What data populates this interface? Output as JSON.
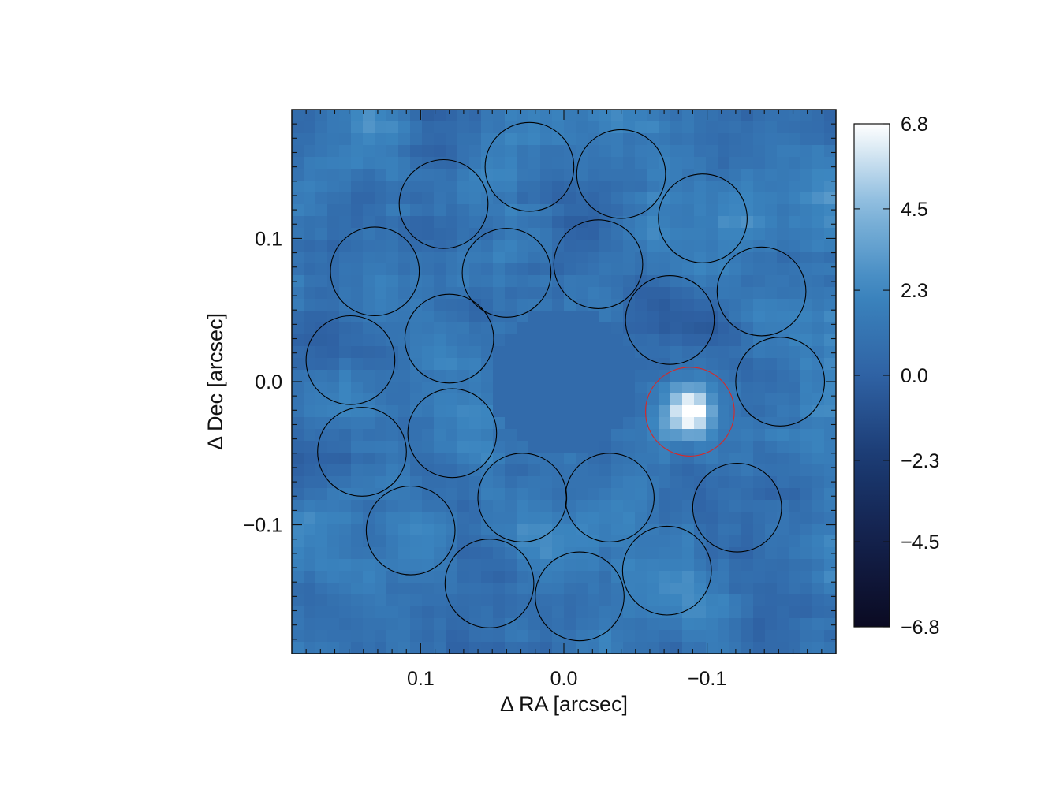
{
  "chart_data": {
    "type": "heatmap",
    "title": "",
    "xlabel": "Δ RA [arcsec]",
    "ylabel": "Δ Dec [arcsec]",
    "xlim": [
      0.19,
      -0.19
    ],
    "ylim": [
      -0.19,
      0.19
    ],
    "x_ticks": [
      {
        "value": 0.1,
        "label": "0.1"
      },
      {
        "value": 0.0,
        "label": "0.0"
      },
      {
        "value": -0.1,
        "label": "−0.1"
      }
    ],
    "y_ticks": [
      {
        "value": 0.1,
        "label": "0.1"
      },
      {
        "value": 0.0,
        "label": "0.0"
      },
      {
        "value": -0.1,
        "label": "−0.1"
      }
    ],
    "colorbar": {
      "range": [
        -6.8,
        6.8
      ],
      "ticks": [
        {
          "value": 6.8,
          "label": "6.8"
        },
        {
          "value": 4.5,
          "label": "4.5"
        },
        {
          "value": 2.3,
          "label": "2.3"
        },
        {
          "value": 0.0,
          "label": "0.0"
        },
        {
          "value": -2.3,
          "label": "−2.3"
        },
        {
          "value": -4.5,
          "label": "−4.5"
        },
        {
          "value": -6.8,
          "label": "−6.8"
        }
      ],
      "colormap": [
        "#0b0a22",
        "#13204a",
        "#1b3a72",
        "#2f62a4",
        "#3b85bf",
        "#86b8dc",
        "#ffffff"
      ]
    },
    "circle_radius": 0.031,
    "apertures": [
      {
        "x": -0.088,
        "y": -0.021,
        "color": "#d42a2a"
      },
      {
        "x": -0.151,
        "y": 0.0,
        "color": "#000000"
      },
      {
        "x": -0.138,
        "y": 0.063,
        "color": "#000000"
      },
      {
        "x": -0.097,
        "y": 0.114,
        "color": "#000000"
      },
      {
        "x": -0.04,
        "y": 0.145,
        "color": "#000000"
      },
      {
        "x": 0.024,
        "y": 0.15,
        "color": "#000000"
      },
      {
        "x": 0.084,
        "y": 0.124,
        "color": "#000000"
      },
      {
        "x": 0.132,
        "y": 0.077,
        "color": "#000000"
      },
      {
        "x": 0.149,
        "y": 0.015,
        "color": "#000000"
      },
      {
        "x": 0.141,
        "y": -0.049,
        "color": "#000000"
      },
      {
        "x": 0.107,
        "y": -0.104,
        "color": "#000000"
      },
      {
        "x": 0.052,
        "y": -0.141,
        "color": "#000000"
      },
      {
        "x": -0.011,
        "y": -0.15,
        "color": "#000000"
      },
      {
        "x": -0.072,
        "y": -0.132,
        "color": "#000000"
      },
      {
        "x": -0.121,
        "y": -0.088,
        "color": "#000000"
      },
      {
        "x": 0.08,
        "y": 0.03,
        "color": "#000000"
      },
      {
        "x": 0.04,
        "y": 0.076,
        "color": "#000000"
      },
      {
        "x": -0.024,
        "y": 0.082,
        "color": "#000000"
      },
      {
        "x": -0.074,
        "y": 0.043,
        "color": "#000000"
      },
      {
        "x": 0.078,
        "y": -0.036,
        "color": "#000000"
      },
      {
        "x": 0.029,
        "y": -0.081,
        "color": "#000000"
      },
      {
        "x": -0.032,
        "y": -0.081,
        "color": "#000000"
      }
    ],
    "source": {
      "x": -0.088,
      "y": -0.021,
      "peak": 6.8
    },
    "background_level": 1.2
  }
}
